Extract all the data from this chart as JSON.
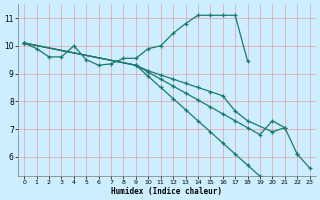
{
  "xlabel": "Humidex (Indice chaleur)",
  "bg_color": "#cceeff",
  "line_color": "#1a7a6e",
  "grid_color": "#e8a0a8",
  "xlim": [
    -0.5,
    23.5
  ],
  "ylim": [
    5.3,
    11.5
  ],
  "xticks": [
    0,
    1,
    2,
    3,
    4,
    5,
    6,
    7,
    8,
    9,
    10,
    11,
    12,
    13,
    14,
    15,
    16,
    17,
    18,
    19,
    20,
    21,
    22,
    23
  ],
  "yticks": [
    6,
    7,
    8,
    9,
    10,
    11
  ],
  "series": [
    {
      "x": [
        0,
        1,
        2,
        3,
        4,
        5,
        6,
        7,
        8,
        9,
        10,
        11,
        12,
        13,
        14,
        15,
        16,
        17,
        18
      ],
      "y": [
        10.1,
        9.9,
        9.6,
        9.6,
        10.0,
        9.5,
        9.3,
        9.35,
        9.55,
        9.55,
        9.9,
        10.0,
        10.45,
        10.8,
        11.1,
        11.1,
        11.1,
        11.1,
        9.45
      ]
    },
    {
      "x": [
        0,
        9,
        10,
        11,
        12,
        13,
        14,
        15,
        16,
        17,
        18,
        20,
        21,
        22
      ],
      "y": [
        10.1,
        9.3,
        9.1,
        8.95,
        8.8,
        8.65,
        8.5,
        8.35,
        8.2,
        7.65,
        7.3,
        6.9,
        7.05,
        6.1
      ]
    },
    {
      "x": [
        0,
        9,
        10,
        11,
        12,
        13,
        14,
        15,
        16,
        17,
        18,
        19,
        20,
        21
      ],
      "y": [
        10.1,
        9.3,
        9.05,
        8.8,
        8.55,
        8.3,
        8.05,
        7.8,
        7.55,
        7.3,
        7.05,
        6.8,
        7.3,
        7.05
      ]
    },
    {
      "x": [
        0,
        9,
        10,
        11,
        12,
        13,
        14,
        15,
        16,
        17,
        18,
        19,
        20,
        21,
        22,
        23
      ],
      "y": [
        10.1,
        9.3,
        8.9,
        8.5,
        8.1,
        7.7,
        7.3,
        6.9,
        6.5,
        6.1,
        5.7,
        5.3,
        5.0,
        null,
        6.1,
        5.6
      ]
    }
  ]
}
